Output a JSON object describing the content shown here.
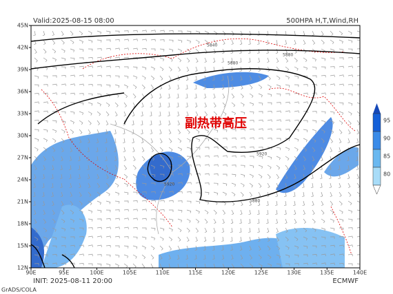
{
  "header": {
    "valid": "Valid:2025-08-15 08:00",
    "product": "500HPA H,T,Wind,RH"
  },
  "annotation": "副热带高压",
  "x_axis": [
    "90E",
    "95E",
    "100E",
    "105E",
    "110E",
    "115E",
    "120E",
    "125E",
    "130E",
    "135E",
    "140E"
  ],
  "y_axis": [
    "12N",
    "15N",
    "18N",
    "21N",
    "24N",
    "27N",
    "30N",
    "33N",
    "36N",
    "39N",
    "42N",
    "45N"
  ],
  "colorbar": [
    "95",
    "90",
    "85",
    "80"
  ],
  "contour_labels": [
    "5840",
    "5880",
    "5880",
    "5920",
    "5880",
    "5920"
  ],
  "footer": {
    "init": "INIT: 2025-08-11 20:00",
    "source": "ECMWF",
    "software": "GrADS/COLA"
  }
}
